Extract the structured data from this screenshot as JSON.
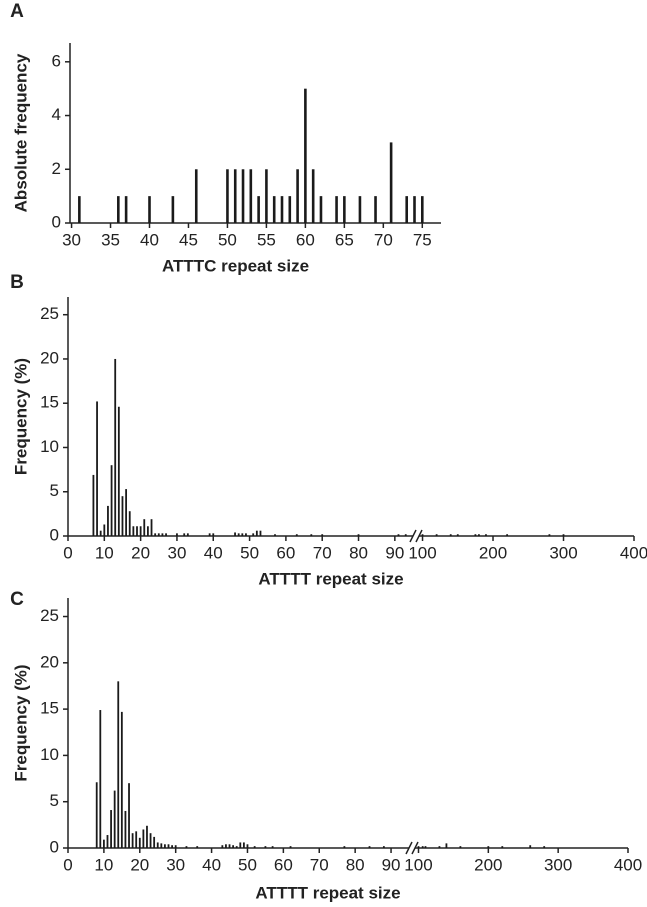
{
  "chart_data": [
    {
      "type": "bar",
      "panel_label": "A",
      "ylabel": "Absolute frequency",
      "xlabel": "ATTTC repeat size",
      "color": "#1a1a1a",
      "x": [
        31,
        36,
        37,
        40,
        43,
        46,
        50,
        51,
        52,
        53,
        54,
        55,
        56,
        57,
        58,
        59,
        60,
        61,
        62,
        64,
        65,
        67,
        69,
        71,
        73,
        74,
        75
      ],
      "values": [
        1,
        1,
        1,
        1,
        1,
        2,
        2,
        2,
        2,
        2,
        1,
        2,
        1,
        1,
        1,
        2,
        5,
        2,
        1,
        1,
        1,
        1,
        1,
        3,
        1,
        1,
        1
      ],
      "x_segments": [
        {
          "xlim": [
            29.8,
            77.4
          ],
          "xticks": [
            30,
            35,
            40,
            45,
            50,
            55,
            60,
            65,
            70,
            75
          ]
        }
      ],
      "ylim": [
        0,
        6.7
      ],
      "yticks": [
        0,
        2,
        4,
        6
      ]
    },
    {
      "type": "bar",
      "panel_label": "B",
      "ylabel": "Frequency (%)",
      "xlabel": "ATTTT repeat size",
      "color": "#1a1a1a",
      "x": [
        7,
        8,
        9,
        10,
        11,
        12,
        13,
        14,
        15,
        16,
        17,
        18,
        19,
        20,
        21,
        22,
        23,
        24,
        25,
        26,
        27,
        30,
        32,
        33,
        39,
        40,
        46,
        47,
        48,
        49,
        51,
        52,
        53,
        57,
        63,
        67,
        70,
        80,
        91,
        93,
        100,
        120,
        140,
        150,
        175,
        180,
        190,
        220,
        280,
        300
      ],
      "values": [
        6.9,
        15.2,
        0.6,
        1.3,
        3.4,
        8.0,
        20.0,
        14.6,
        4.5,
        5.3,
        2.8,
        1.1,
        1.1,
        1.1,
        1.9,
        1.1,
        1.9,
        0.3,
        0.3,
        0.3,
        0.3,
        0.3,
        0.3,
        0.3,
        0.3,
        0.3,
        0.4,
        0.3,
        0.3,
        0.3,
        0.3,
        0.6,
        0.6,
        0.2,
        0.2,
        0.2,
        0.2,
        0.2,
        0.2,
        0.2,
        0.2,
        0.2,
        0.2,
        0.2,
        0.2,
        0.2,
        0.2,
        0.2,
        0.2,
        0.2
      ],
      "x_segments": [
        {
          "xlim": [
            0,
            95
          ],
          "xticks": [
            0,
            10,
            20,
            30,
            40,
            50,
            60,
            70,
            80,
            90
          ]
        },
        {
          "xlim": [
            95,
            400
          ],
          "xticks": [
            100,
            200,
            300,
            400
          ]
        }
      ],
      "ylim": [
        0,
        27
      ],
      "yticks": [
        0,
        5,
        10,
        15,
        20,
        25
      ]
    },
    {
      "type": "bar",
      "panel_label": "C",
      "ylabel": "Frequency (%)",
      "xlabel": "ATTTT repeat size",
      "color": "#1a1a1a",
      "x": [
        8,
        9,
        10,
        11,
        12,
        13,
        14,
        15,
        16,
        17,
        18,
        19,
        20,
        21,
        22,
        23,
        24,
        25,
        26,
        27,
        28,
        29,
        30,
        33,
        36,
        43,
        44,
        45,
        46,
        47,
        48,
        49,
        50,
        52,
        55,
        57,
        62,
        77,
        84,
        88,
        100,
        106,
        110,
        130,
        140,
        160,
        200,
        220,
        260,
        280
      ],
      "values": [
        7.1,
        14.9,
        0.9,
        1.4,
        4.1,
        6.2,
        18.0,
        14.7,
        4.0,
        7.0,
        1.6,
        1.8,
        1.1,
        2.0,
        2.4,
        1.6,
        1.2,
        0.6,
        0.5,
        0.4,
        0.4,
        0.3,
        0.3,
        0.2,
        0.2,
        0.3,
        0.4,
        0.4,
        0.3,
        0.2,
        0.6,
        0.6,
        0.4,
        0.2,
        0.2,
        0.2,
        0.2,
        0.2,
        0.2,
        0.2,
        0.2,
        0.2,
        0.2,
        0.2,
        0.5,
        0.2,
        0.2,
        0.2,
        0.3,
        0.2
      ],
      "x_segments": [
        {
          "xlim": [
            0,
            95
          ],
          "xticks": [
            0,
            10,
            20,
            30,
            40,
            50,
            60,
            70,
            80,
            90
          ]
        },
        {
          "xlim": [
            95,
            400
          ],
          "xticks": [
            100,
            200,
            300,
            400
          ]
        }
      ],
      "ylim": [
        0,
        27
      ],
      "yticks": [
        0,
        5,
        10,
        15,
        20,
        25
      ]
    }
  ]
}
